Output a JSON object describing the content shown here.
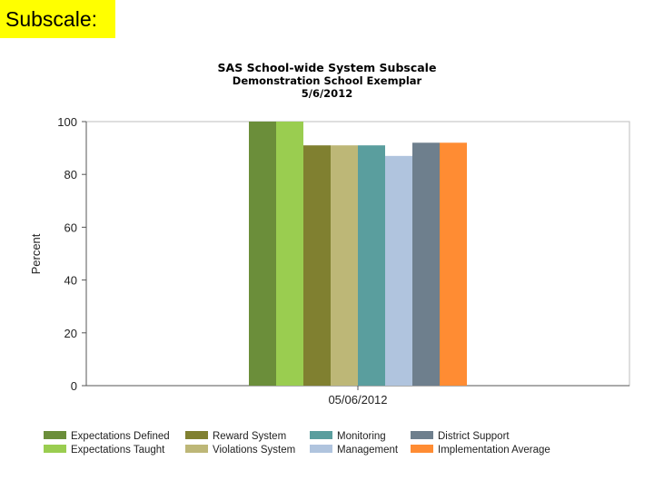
{
  "slide_label": "Subscale:",
  "chart_data": {
    "type": "bar",
    "title": "SAS School-wide System Subscale",
    "subtitle": "Demonstration School Exemplar",
    "date_line": "5/6/2012",
    "categories": [
      "05/06/2012"
    ],
    "xlabel": "",
    "ylabel": "Percent",
    "ylim": [
      0,
      100
    ],
    "yticks": [
      0,
      20,
      40,
      60,
      80,
      100
    ],
    "legend_position": "bottom",
    "series": [
      {
        "name": "Expectations Defined",
        "values": [
          100
        ],
        "color": "#6b8e3a"
      },
      {
        "name": "Expectations Taught",
        "values": [
          100
        ],
        "color": "#9acd50"
      },
      {
        "name": "Reward System",
        "values": [
          91
        ],
        "color": "#808030"
      },
      {
        "name": "Violations System",
        "values": [
          91
        ],
        "color": "#bdb777"
      },
      {
        "name": "Monitoring",
        "values": [
          91
        ],
        "color": "#5a9e9e"
      },
      {
        "name": "Management",
        "values": [
          87
        ],
        "color": "#b0c4de"
      },
      {
        "name": "District Support",
        "values": [
          92
        ],
        "color": "#6e7f8d"
      },
      {
        "name": "Implementation Average",
        "values": [
          92
        ],
        "color": "#ff8c33"
      }
    ]
  }
}
